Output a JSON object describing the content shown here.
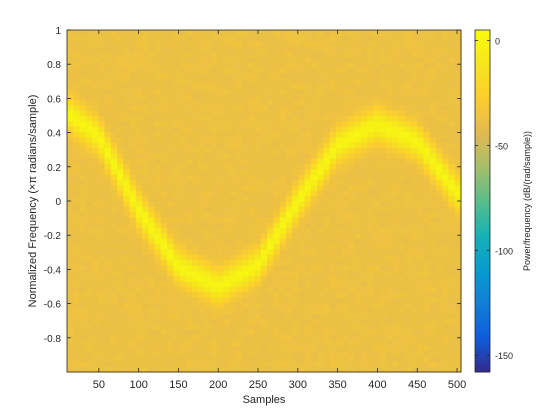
{
  "chart_data": {
    "type": "heatmap",
    "xlabel": "Samples",
    "ylabel": "Normalized Frequency (×π radians/sample)",
    "colorbar_label": "Power/frequency (dB/(rad/sample))",
    "xlim": [
      10,
      505
    ],
    "ylim": [
      -1,
      1
    ],
    "x_ticks": [
      50,
      100,
      150,
      200,
      250,
      300,
      350,
      400,
      450,
      500
    ],
    "x_tick_labels": [
      "50",
      "100",
      "150",
      "200",
      "250",
      "300",
      "350",
      "400",
      "450",
      "500"
    ],
    "y_ticks": [
      1,
      0.8,
      0.6,
      0.4,
      0.2,
      0,
      -0.2,
      -0.4,
      -0.6,
      -0.8
    ],
    "y_tick_labels": [
      "1",
      "0.8",
      "0.6",
      "0.4",
      "0.2",
      "0",
      "-0.2",
      "-0.4",
      "-0.6",
      "-0.8"
    ],
    "clim": [
      -158,
      5
    ],
    "colorbar_ticks": [
      0,
      -50,
      -100,
      -150
    ],
    "colorbar_tick_labels": [
      "0",
      "-50",
      "-100",
      "-150"
    ],
    "colormap": "parula",
    "ridge": {
      "description_values": "peak normalized frequency over samples",
      "samples": [
        10,
        50,
        100,
        150,
        200,
        250,
        300,
        350,
        400,
        450,
        500
      ],
      "frequency": [
        0.52,
        0.38,
        -0.05,
        -0.38,
        -0.5,
        -0.37,
        0.0,
        0.33,
        0.45,
        0.35,
        0.05
      ]
    }
  }
}
